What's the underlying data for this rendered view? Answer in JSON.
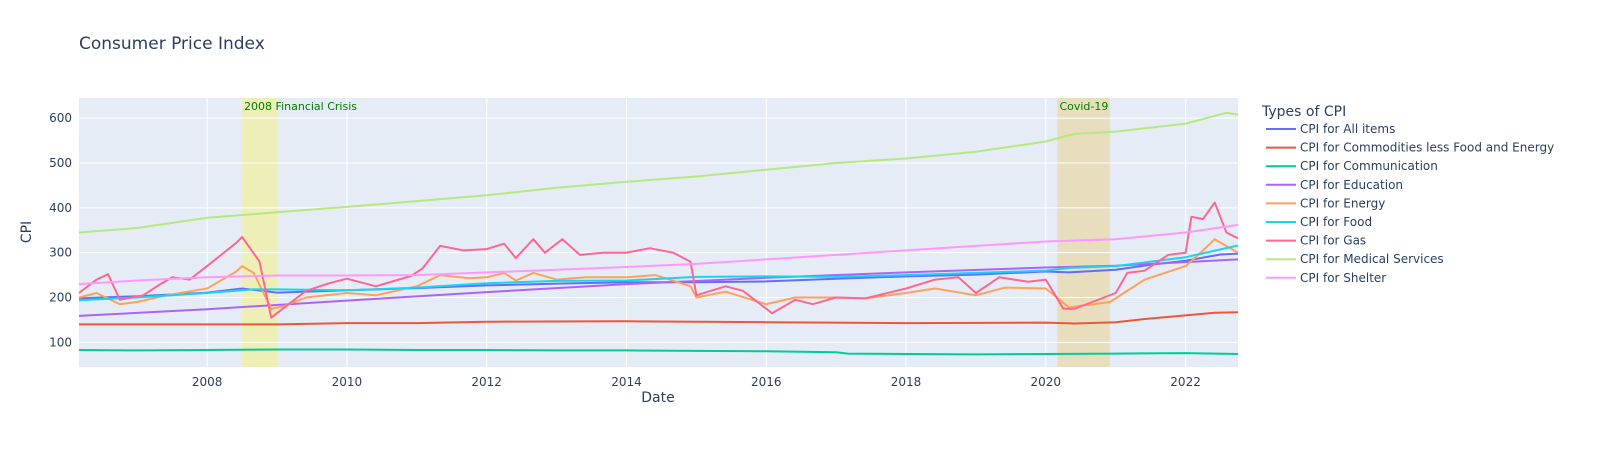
{
  "chart_data": {
    "type": "line",
    "title": "Consumer Price Index",
    "xlabel": "Date",
    "ylabel": "CPI",
    "xlim": [
      "2006-03",
      "2022-10"
    ],
    "ylim": [
      45,
      645
    ],
    "x_ticks": [
      "2008",
      "2010",
      "2012",
      "2014",
      "2016",
      "2018",
      "2020",
      "2022"
    ],
    "y_ticks": [
      100,
      200,
      300,
      400,
      500,
      600
    ],
    "grid": true,
    "plot_background": "#E5ECF6",
    "legend_title": "Types of CPI",
    "legend_position": "right",
    "annotations": [
      {
        "label": "2008 Financial Crisis",
        "x0": "2008-07",
        "x1": "2009-01",
        "fill": "#F0F0A0",
        "text_color": "#008000"
      },
      {
        "label": "Covid-19",
        "x0": "2020-03",
        "x1": "2020-12",
        "fill": "#E8D8A8",
        "text_color": "#008000"
      }
    ],
    "series": [
      {
        "name": "CPI for All items",
        "color": "#636EFA",
        "points": [
          [
            "2006-03",
            198
          ],
          [
            "2007-01",
            203
          ],
          [
            "2008-01",
            211
          ],
          [
            "2008-07",
            220
          ],
          [
            "2009-01",
            211
          ],
          [
            "2010-01",
            216
          ],
          [
            "2011-01",
            221
          ],
          [
            "2012-01",
            227
          ],
          [
            "2013-01",
            231
          ],
          [
            "2014-01",
            234
          ],
          [
            "2015-01",
            234
          ],
          [
            "2016-01",
            236
          ],
          [
            "2017-01",
            242
          ],
          [
            "2018-01",
            247
          ],
          [
            "2019-01",
            251
          ],
          [
            "2020-01",
            258
          ],
          [
            "2020-05",
            256
          ],
          [
            "2021-01",
            262
          ],
          [
            "2021-07",
            273
          ],
          [
            "2022-01",
            282
          ],
          [
            "2022-07",
            296
          ],
          [
            "2022-10",
            298
          ]
        ]
      },
      {
        "name": "CPI for Commodities less Food and Energy",
        "color": "#EF553B",
        "points": [
          [
            "2006-03",
            140
          ],
          [
            "2008-01",
            140
          ],
          [
            "2009-01",
            140
          ],
          [
            "2010-01",
            143
          ],
          [
            "2011-01",
            143
          ],
          [
            "2012-01",
            146
          ],
          [
            "2014-01",
            147
          ],
          [
            "2016-01",
            145
          ],
          [
            "2018-01",
            143
          ],
          [
            "2020-01",
            144
          ],
          [
            "2020-06",
            142
          ],
          [
            "2021-01",
            145
          ],
          [
            "2021-06",
            152
          ],
          [
            "2022-01",
            160
          ],
          [
            "2022-06",
            166
          ],
          [
            "2022-10",
            167
          ]
        ]
      },
      {
        "name": "CPI for Communication",
        "color": "#00CC96",
        "points": [
          [
            "2006-03",
            83
          ],
          [
            "2007-01",
            82
          ],
          [
            "2008-01",
            83
          ],
          [
            "2009-01",
            84
          ],
          [
            "2010-01",
            84
          ],
          [
            "2011-01",
            83
          ],
          [
            "2012-01",
            83
          ],
          [
            "2013-01",
            82
          ],
          [
            "2014-01",
            82
          ],
          [
            "2015-01",
            81
          ],
          [
            "2016-01",
            80
          ],
          [
            "2017-01",
            78
          ],
          [
            "2017-03",
            75
          ],
          [
            "2018-01",
            74
          ],
          [
            "2019-01",
            73
          ],
          [
            "2020-01",
            74
          ],
          [
            "2021-01",
            75
          ],
          [
            "2022-01",
            76
          ],
          [
            "2022-10",
            74
          ]
        ]
      },
      {
        "name": "CPI for Education",
        "color": "#AB63FA",
        "points": [
          [
            "2006-03",
            159
          ],
          [
            "2008-01",
            174
          ],
          [
            "2010-01",
            193
          ],
          [
            "2012-01",
            212
          ],
          [
            "2014-01",
            230
          ],
          [
            "2016-01",
            244
          ],
          [
            "2018-01",
            256
          ],
          [
            "2020-01",
            267
          ],
          [
            "2021-01",
            271
          ],
          [
            "2022-01",
            279
          ],
          [
            "2022-10",
            285
          ]
        ]
      },
      {
        "name": "CPI for Energy",
        "color": "#FFA15A",
        "points": [
          [
            "2006-03",
            200
          ],
          [
            "2006-06",
            210
          ],
          [
            "2006-10",
            185
          ],
          [
            "2007-01",
            190
          ],
          [
            "2007-06",
            205
          ],
          [
            "2008-01",
            220
          ],
          [
            "2008-06",
            258
          ],
          [
            "2008-07",
            270
          ],
          [
            "2008-09",
            255
          ],
          [
            "2008-12",
            175
          ],
          [
            "2009-02",
            180
          ],
          [
            "2009-06",
            200
          ],
          [
            "2010-01",
            210
          ],
          [
            "2010-06",
            205
          ],
          [
            "2011-01",
            225
          ],
          [
            "2011-05",
            250
          ],
          [
            "2011-10",
            243
          ],
          [
            "2012-01",
            245
          ],
          [
            "2012-04",
            255
          ],
          [
            "2012-06",
            238
          ],
          [
            "2012-09",
            255
          ],
          [
            "2013-01",
            240
          ],
          [
            "2013-06",
            245
          ],
          [
            "2014-01",
            245
          ],
          [
            "2014-06",
            250
          ],
          [
            "2014-12",
            225
          ],
          [
            "2015-01",
            200
          ],
          [
            "2015-06",
            213
          ],
          [
            "2016-01",
            185
          ],
          [
            "2016-06",
            200
          ],
          [
            "2017-01",
            200
          ],
          [
            "2017-06",
            198
          ],
          [
            "2018-01",
            210
          ],
          [
            "2018-06",
            220
          ],
          [
            "2019-01",
            205
          ],
          [
            "2019-06",
            222
          ],
          [
            "2020-01",
            220
          ],
          [
            "2020-05",
            178
          ],
          [
            "2020-12",
            190
          ],
          [
            "2021-06",
            240
          ],
          [
            "2022-01",
            270
          ],
          [
            "2022-04",
            305
          ],
          [
            "2022-06",
            330
          ],
          [
            "2022-10",
            300
          ]
        ]
      },
      {
        "name": "CPI for Food",
        "color": "#19D3F3",
        "points": [
          [
            "2006-03",
            194
          ],
          [
            "2007-01",
            200
          ],
          [
            "2008-01",
            210
          ],
          [
            "2008-09",
            218
          ],
          [
            "2009-01",
            218
          ],
          [
            "2010-01",
            216
          ],
          [
            "2011-01",
            222
          ],
          [
            "2012-01",
            232
          ],
          [
            "2013-01",
            237
          ],
          [
            "2014-01",
            238
          ],
          [
            "2015-01",
            246
          ],
          [
            "2016-01",
            247
          ],
          [
            "2017-01",
            246
          ],
          [
            "2018-01",
            250
          ],
          [
            "2019-01",
            255
          ],
          [
            "2020-01",
            260
          ],
          [
            "2020-05",
            266
          ],
          [
            "2021-01",
            270
          ],
          [
            "2022-01",
            290
          ],
          [
            "2022-10",
            316
          ]
        ]
      },
      {
        "name": "CPI for Gas",
        "color": "#FF6692",
        "points": [
          [
            "2006-03",
            210
          ],
          [
            "2006-06",
            240
          ],
          [
            "2006-08",
            252
          ],
          [
            "2006-10",
            195
          ],
          [
            "2007-02",
            205
          ],
          [
            "2007-05",
            230
          ],
          [
            "2007-07",
            245
          ],
          [
            "2007-10",
            240
          ],
          [
            "2008-01",
            270
          ],
          [
            "2008-06",
            322
          ],
          [
            "2008-07",
            335
          ],
          [
            "2008-10",
            280
          ],
          [
            "2008-12",
            155
          ],
          [
            "2009-02",
            175
          ],
          [
            "2009-06",
            215
          ],
          [
            "2009-10",
            232
          ],
          [
            "2010-01",
            242
          ],
          [
            "2010-06",
            225
          ],
          [
            "2010-12",
            248
          ],
          [
            "2011-02",
            265
          ],
          [
            "2011-05",
            315
          ],
          [
            "2011-09",
            305
          ],
          [
            "2012-01",
            308
          ],
          [
            "2012-04",
            320
          ],
          [
            "2012-06",
            288
          ],
          [
            "2012-09",
            330
          ],
          [
            "2012-11",
            300
          ],
          [
            "2013-02",
            330
          ],
          [
            "2013-05",
            295
          ],
          [
            "2013-09",
            300
          ],
          [
            "2014-01",
            300
          ],
          [
            "2014-05",
            310
          ],
          [
            "2014-09",
            300
          ],
          [
            "2014-12",
            280
          ],
          [
            "2015-01",
            205
          ],
          [
            "2015-06",
            225
          ],
          [
            "2015-09",
            215
          ],
          [
            "2016-02",
            165
          ],
          [
            "2016-06",
            195
          ],
          [
            "2016-09",
            185
          ],
          [
            "2017-01",
            200
          ],
          [
            "2017-06",
            198
          ],
          [
            "2018-01",
            220
          ],
          [
            "2018-06",
            240
          ],
          [
            "2018-10",
            245
          ],
          [
            "2019-01",
            210
          ],
          [
            "2019-05",
            245
          ],
          [
            "2019-10",
            235
          ],
          [
            "2020-01",
            240
          ],
          [
            "2020-04",
            175
          ],
          [
            "2020-06",
            175
          ],
          [
            "2020-09",
            190
          ],
          [
            "2021-01",
            210
          ],
          [
            "2021-03",
            255
          ],
          [
            "2021-06",
            260
          ],
          [
            "2021-10",
            295
          ],
          [
            "2022-01",
            300
          ],
          [
            "2022-02",
            380
          ],
          [
            "2022-04",
            375
          ],
          [
            "2022-06",
            412
          ],
          [
            "2022-08",
            345
          ],
          [
            "2022-10",
            332
          ]
        ]
      },
      {
        "name": "CPI for Medical Services",
        "color": "#B6E880",
        "points": [
          [
            "2006-03",
            345
          ],
          [
            "2007-01",
            355
          ],
          [
            "2008-01",
            378
          ],
          [
            "2009-01",
            390
          ],
          [
            "2010-01",
            402
          ],
          [
            "2011-01",
            415
          ],
          [
            "2012-01",
            428
          ],
          [
            "2013-01",
            445
          ],
          [
            "2014-01",
            458
          ],
          [
            "2015-01",
            470
          ],
          [
            "2016-01",
            485
          ],
          [
            "2017-01",
            500
          ],
          [
            "2018-01",
            510
          ],
          [
            "2019-01",
            525
          ],
          [
            "2020-01",
            548
          ],
          [
            "2020-06",
            565
          ],
          [
            "2021-01",
            570
          ],
          [
            "2022-01",
            588
          ],
          [
            "2022-08",
            612
          ],
          [
            "2022-10",
            608
          ]
        ]
      },
      {
        "name": "CPI for Shelter",
        "color": "#FF97FF",
        "points": [
          [
            "2006-03",
            230
          ],
          [
            "2007-01",
            238
          ],
          [
            "2008-01",
            245
          ],
          [
            "2009-01",
            249
          ],
          [
            "2010-01",
            249
          ],
          [
            "2011-01",
            250
          ],
          [
            "2012-01",
            256
          ],
          [
            "2013-01",
            262
          ],
          [
            "2014-01",
            268
          ],
          [
            "2015-01",
            275
          ],
          [
            "2016-01",
            285
          ],
          [
            "2017-01",
            295
          ],
          [
            "2018-01",
            305
          ],
          [
            "2019-01",
            315
          ],
          [
            "2020-01",
            325
          ],
          [
            "2021-01",
            330
          ],
          [
            "2022-01",
            345
          ],
          [
            "2022-10",
            362
          ]
        ]
      }
    ]
  }
}
